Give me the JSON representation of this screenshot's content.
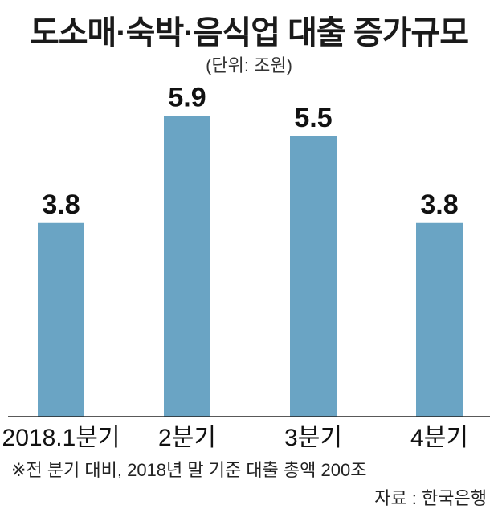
{
  "chart_data": {
    "type": "bar",
    "title": "도소매·숙박·음식업 대출 증가규모",
    "unit": "(단위: 조원)",
    "categories": [
      "2018.1분기",
      "2분기",
      "3분기",
      "4분기"
    ],
    "values": [
      3.8,
      5.9,
      5.5,
      3.8
    ],
    "value_labels": [
      "3.8",
      "5.9",
      "5.5",
      "3.8"
    ],
    "ylim": [
      0,
      6.6
    ],
    "grid": false,
    "bar_color": "#6aa4c4"
  },
  "footnote": "※전 분기 대비, 2018년 말 기준 대출 총액 200조",
  "source": "자료 : 한국은행"
}
